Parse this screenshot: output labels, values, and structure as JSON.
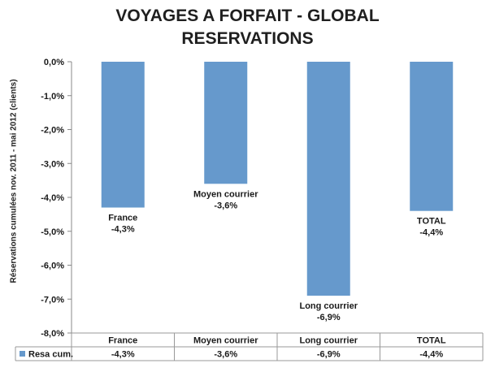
{
  "chart_data": {
    "type": "bar",
    "title": "VOYAGES A FORFAIT - GLOBAL RESERVATIONS",
    "title_lines": [
      "VOYAGES A FORFAIT - GLOBAL",
      "RESERVATIONS"
    ],
    "ylabel": "Réservations cumulées nov. 2011 - mai 2012 (clients)",
    "xlabel": "",
    "ylim": [
      -8.0,
      0.0
    ],
    "y_ticks": [
      "0,0%",
      "-1,0%",
      "-2,0%",
      "-3,0%",
      "-4,0%",
      "-5,0%",
      "-6,0%",
      "-7,0%",
      "-8,0%"
    ],
    "y_tick_values": [
      0,
      -1,
      -2,
      -3,
      -4,
      -5,
      -6,
      -7,
      -8
    ],
    "categories": [
      "France",
      "Moyen courrier",
      "Long courrier",
      "TOTAL"
    ],
    "series": [
      {
        "name": "Resa cum.",
        "color": "#6699cc",
        "values": [
          -4.3,
          -3.6,
          -6.9,
          -4.4
        ],
        "value_labels": [
          "-4,3%",
          "-3,6%",
          "-6,9%",
          "-4,4%"
        ]
      }
    ],
    "grid": false,
    "legend": "data-table-bottom"
  }
}
